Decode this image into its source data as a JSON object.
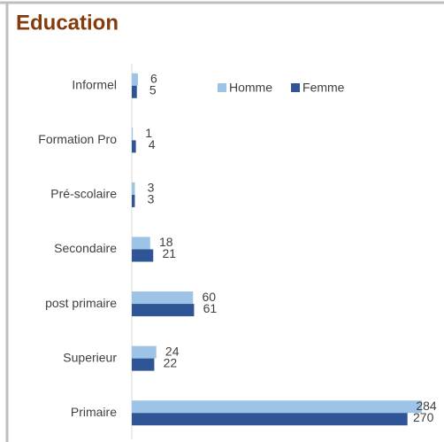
{
  "chart_data": {
    "type": "bar",
    "orientation": "horizontal",
    "title": "Education",
    "categories": [
      "Informel",
      "Formation Pro",
      "Pré-scolaire",
      "Secondaire",
      "post primaire",
      "Superieur",
      "Primaire"
    ],
    "series": [
      {
        "name": "Homme",
        "color": "#9dc3e6",
        "values": [
          6,
          1,
          3,
          18,
          60,
          24,
          284
        ]
      },
      {
        "name": "Femme",
        "color": "#2f5597",
        "values": [
          5,
          4,
          3,
          21,
          61,
          22,
          270
        ]
      }
    ],
    "xlim": [
      0,
      285
    ],
    "legend": "top"
  }
}
